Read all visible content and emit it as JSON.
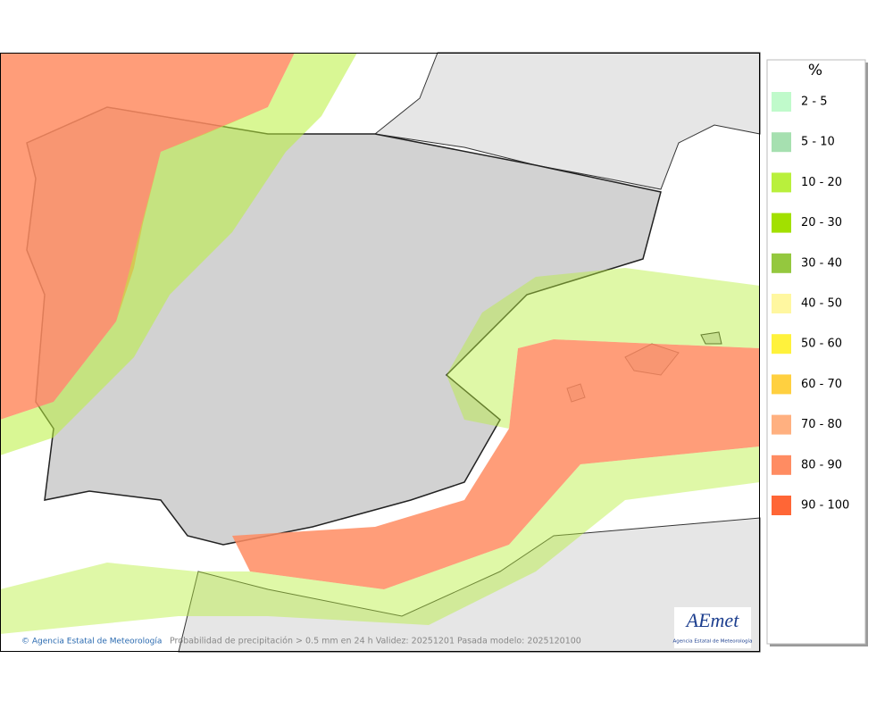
{
  "legend": {
    "title": "%",
    "items": [
      {
        "label": "2 - 5",
        "color": "#c0facb"
      },
      {
        "label": "5 - 10",
        "color": "#a6e0b0"
      },
      {
        "label": "10 - 20",
        "color": "#b9f03c"
      },
      {
        "label": "20 - 30",
        "color": "#a2e000"
      },
      {
        "label": "30 - 40",
        "color": "#94c83e"
      },
      {
        "label": "40 - 50",
        "color": "#fff7a0"
      },
      {
        "label": "50 - 60",
        "color": "#fff23c"
      },
      {
        "label": "60 - 70",
        "color": "#ffd040"
      },
      {
        "label": "70 - 80",
        "color": "#ffb080"
      },
      {
        "label": "80 - 90",
        "color": "#ff8c62"
      },
      {
        "label": "90 - 100",
        "color": "#ff6636"
      }
    ]
  },
  "footer": {
    "credit": "© Agencia Estatal de Meteorología",
    "caption": "Probabilidad de precipitación > 0.5 mm en 24 h Validez: 20251201 Pasada modelo: 2025120100"
  },
  "logo": {
    "text": "AEmet",
    "subtitle": "Agencia Estatal de Meteorología"
  }
}
